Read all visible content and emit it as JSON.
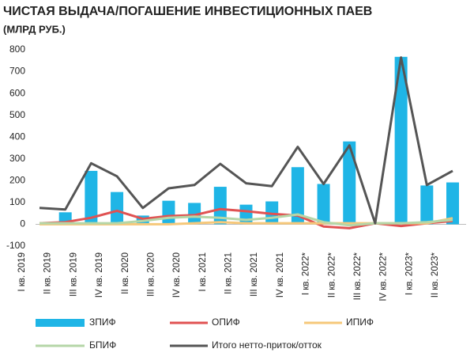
{
  "chart_data": {
    "type": "bar_line",
    "title": "ЧИСТАЯ ВЫДАЧА/ПОГАШЕНИЕ ИНВЕСТИЦИОННЫХ ПАЕВ",
    "subtitle": "(МЛРД РУБ.)",
    "categories": [
      "I кв. 2019",
      "II кв. 2019",
      "III кв. 2019",
      "IV кв. 2019",
      "II кв. 2020",
      "III кв. 2020",
      "IV кв. 2020",
      "I кв. 2021",
      "II кв. 2021",
      "III кв. 2021",
      "IV кв. 2021",
      "I кв. 2022*",
      "II кв. 2022*",
      "III кв. 2022*",
      "IV кв. 2022*",
      "I кв. 2023*",
      "II кв. 2023*"
    ],
    "series": [
      {
        "name": "ЗПИФ",
        "type": "bar",
        "color": "#1fb5e6",
        "values": [
          null,
          55,
          245,
          148,
          40,
          108,
          98,
          172,
          90,
          105,
          262,
          185,
          380,
          5,
          768,
          178,
          192
        ]
      },
      {
        "name": "ОПИФ",
        "type": "line",
        "color": "#e05252",
        "values": [
          5,
          10,
          30,
          62,
          25,
          38,
          42,
          70,
          60,
          48,
          40,
          -10,
          -18,
          5,
          -8,
          5,
          15
        ]
      },
      {
        "name": "ИПИФ",
        "type": "line",
        "color": "#f6c87a",
        "values": [
          0,
          0,
          0,
          0,
          0,
          0,
          5,
          10,
          5,
          5,
          5,
          5,
          5,
          5,
          5,
          5,
          28
        ]
      },
      {
        "name": "БПИФ",
        "type": "line",
        "color": "#b5d6a7",
        "values": [
          5,
          5,
          5,
          5,
          15,
          30,
          35,
          30,
          20,
          30,
          45,
          10,
          -5,
          5,
          5,
          10,
          20
        ]
      },
      {
        "name": "Итого нетто-приток/отток",
        "type": "line",
        "color": "#555555",
        "values": [
          75,
          68,
          280,
          220,
          75,
          165,
          180,
          277,
          188,
          175,
          355,
          185,
          362,
          5,
          765,
          180,
          245
        ]
      }
    ],
    "ylim": [
      -100,
      800
    ],
    "yticks": [
      -100,
      0,
      100,
      200,
      300,
      400,
      500,
      600,
      700,
      800
    ],
    "grid": false
  }
}
